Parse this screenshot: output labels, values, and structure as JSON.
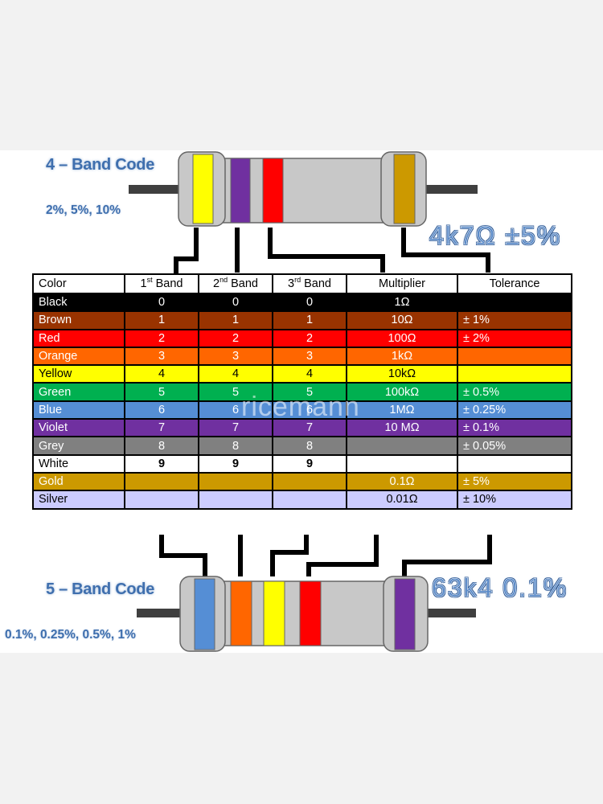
{
  "four_band": {
    "heading": "4 – Band Code",
    "tolerances": "2%, 5%, 10%",
    "example": "4k7Ω   ±5%",
    "bands": [
      "#ffff00",
      "#7030a0",
      "#ff0000",
      "#cc9900"
    ]
  },
  "five_band": {
    "heading": "5 – Band Code",
    "tolerances": "0.1%, 0.25%, 0.5%, 1%",
    "example": "63k4  0.1%",
    "bands": [
      "#558ed5",
      "#ff6600",
      "#ffff00",
      "#ff0000",
      "#7030a0"
    ]
  },
  "watermark": "ricemann",
  "table": {
    "headers": {
      "color": "Color",
      "band1_num": "1",
      "band1_sup": "st",
      "band1_rest": " Band",
      "band2_num": "2",
      "band2_sup": "nd",
      "band2_rest": " Band",
      "band3_num": "3",
      "band3_sup": "rd",
      "band3_rest": " Band",
      "multiplier": "Multiplier",
      "tolerance": "Tolerance"
    },
    "rows": [
      {
        "name": "Black",
        "d1": "0",
        "d2": "0",
        "d3": "0",
        "mult": "1Ω",
        "tol": "",
        "bg": "#000000",
        "fg": "#ffffff"
      },
      {
        "name": "Brown",
        "d1": "1",
        "d2": "1",
        "d3": "1",
        "mult": "10Ω",
        "tol": "± 1%",
        "bg": "#993300",
        "fg": "#ffffff"
      },
      {
        "name": "Red",
        "d1": "2",
        "d2": "2",
        "d3": "2",
        "mult": "100Ω",
        "tol": "± 2%",
        "bg": "#ff0000",
        "fg": "#ffffff"
      },
      {
        "name": "Orange",
        "d1": "3",
        "d2": "3",
        "d3": "3",
        "mult": "1kΩ",
        "tol": "",
        "bg": "#ff6600",
        "fg": "#ffffff"
      },
      {
        "name": "Yellow",
        "d1": "4",
        "d2": "4",
        "d3": "4",
        "mult": "10kΩ",
        "tol": "",
        "bg": "#ffff00",
        "fg": "#000000"
      },
      {
        "name": "Green",
        "d1": "5",
        "d2": "5",
        "d3": "5",
        "mult": "100kΩ",
        "tol": "± 0.5%",
        "bg": "#00b050",
        "fg": "#ffffff"
      },
      {
        "name": "Blue",
        "d1": "6",
        "d2": "6",
        "d3": "6",
        "mult": "1MΩ",
        "tol": "± 0.25%",
        "bg": "#558ed5",
        "fg": "#ffffff"
      },
      {
        "name": "Violet",
        "d1": "7",
        "d2": "7",
        "d3": "7",
        "mult": "10 MΩ",
        "tol": "± 0.1%",
        "bg": "#7030a0",
        "fg": "#ffffff"
      },
      {
        "name": "Grey",
        "d1": "8",
        "d2": "8",
        "d3": "8",
        "mult": "",
        "tol": "± 0.05%",
        "bg": "#808080",
        "fg": "#ffffff"
      },
      {
        "name": "White",
        "d1": "9",
        "d2": "9",
        "d3": "9",
        "mult": "",
        "tol": "",
        "bg": "#ffffff",
        "fg": "#000000"
      },
      {
        "name": "Gold",
        "d1": "",
        "d2": "",
        "d3": "",
        "mult": "0.1Ω",
        "tol": "± 5%",
        "bg": "#cc9900",
        "fg": "#ffffff"
      },
      {
        "name": "Silver",
        "d1": "",
        "d2": "",
        "d3": "",
        "mult": "0.01Ω",
        "tol": "± 10%",
        "bg": "#ccccff",
        "fg": "#000000"
      }
    ]
  }
}
